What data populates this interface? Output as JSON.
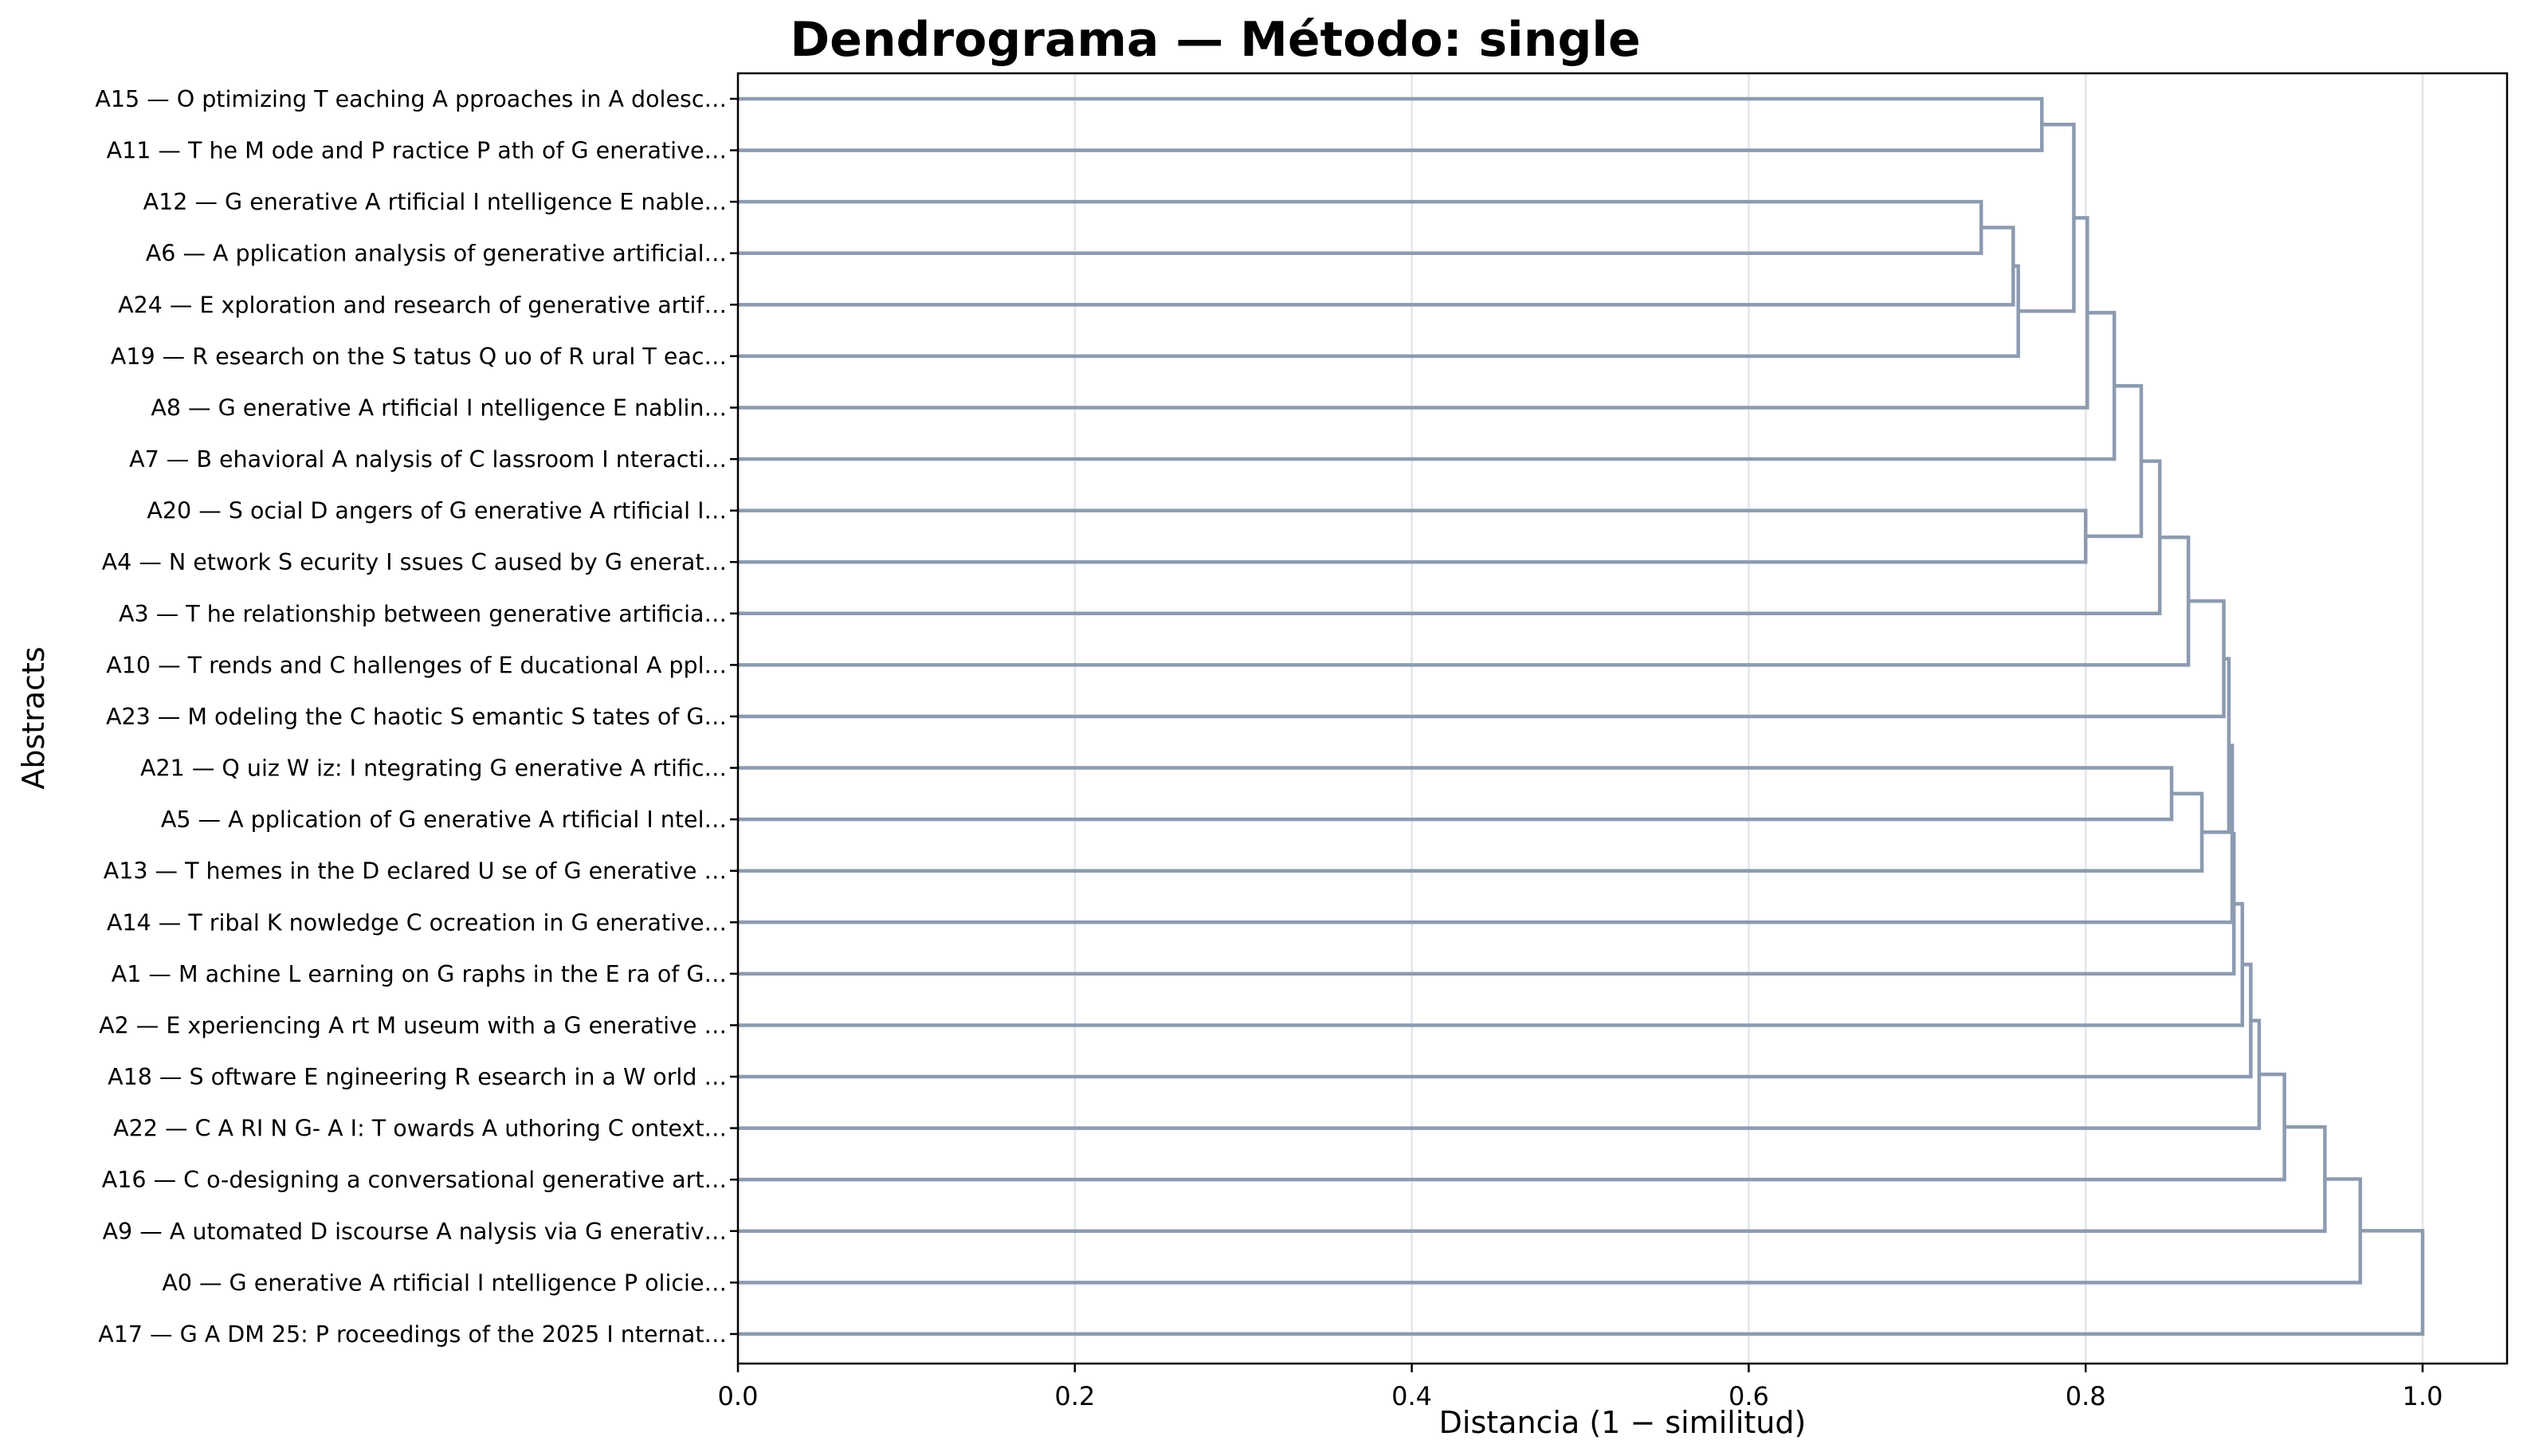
{
  "chart_data": {
    "type": "dendrogram",
    "title": "Dendrograma — Método: single",
    "xlabel": "Distancia (1 − similitud)",
    "ylabel": "Abstracts",
    "xlim": [
      0.0,
      1.05
    ],
    "xticks": [
      "0.0",
      "0.2",
      "0.4",
      "0.6",
      "0.8",
      "1.0"
    ],
    "grid": "vertical",
    "link_color": "#8d9bb0",
    "leaves": [
      "A15 — O ptimizing T eaching A pproaches in A dolesc…",
      "A11 — T he M ode and P ractice P ath of G enerative…",
      "A12 — G enerative A rtificial I ntelligence E nable…",
      "A6 — A pplication analysis of generative artificial…",
      "A24 — E xploration and research of generative artif…",
      "A19 — R esearch on the S tatus Q uo of R ural T eac…",
      "A8 — G enerative A rtificial I ntelligence E nablin…",
      "A7 — B ehavioral A nalysis of C lassroom I nteracti…",
      "A20 — S ocial D angers of G enerative A rtificial I…",
      "A4 — N etwork S ecurity I ssues C aused by G enerat…",
      "A3 — T he relationship between generative artificia…",
      "A10 — T rends and C hallenges of E ducational A ppl…",
      "A23 — M odeling the C haotic S emantic S tates of G…",
      "A21 — Q uiz W iz: I ntegrating G enerative A rtific…",
      "A5 — A pplication of G enerative A rtificial I ntel…",
      "A13 — T hemes in the D eclared U se of G enerative …",
      "A14 — T ribal K nowledge C ocreation in G enerative…",
      "A1 — M achine L earning on G raphs in the E ra of G…",
      "A2 — E xperiencing A rt M useum with a G enerative …",
      "A18 — S oftware E ngineering R esearch in a W orld …",
      "A22 — C A RI N G- A I: T owards A uthoring C ontext…",
      "A16 — C o-designing a conversational generative art…",
      "A9 — A utomated D iscourse A nalysis via G enerativ…",
      "A0 — G enerative A rtificial I ntelligence P olicie…",
      "A17 — G A DM 25: P roceedings of the 2025 I nternat…"
    ],
    "merges": [
      {
        "left": "L2",
        "right": "L3",
        "distance": 0.738
      },
      {
        "left": "N0",
        "right": "L4",
        "distance": 0.757
      },
      {
        "left": "N1",
        "right": "L5",
        "distance": 0.76
      },
      {
        "left": "L0",
        "right": "L1",
        "distance": 0.774
      },
      {
        "left": "N3",
        "right": "N2",
        "distance": 0.793
      },
      {
        "left": "N4",
        "right": "L6",
        "distance": 0.801
      },
      {
        "left": "L8",
        "right": "L9",
        "distance": 0.8
      },
      {
        "left": "N5",
        "right": "L7",
        "distance": 0.817
      },
      {
        "left": "N7",
        "right": "N6",
        "distance": 0.833
      },
      {
        "left": "N8",
        "right": "L10",
        "distance": 0.844
      },
      {
        "left": "L13",
        "right": "L14",
        "distance": 0.851
      },
      {
        "left": "N9",
        "right": "L11",
        "distance": 0.861
      },
      {
        "left": "N10",
        "right": "L15",
        "distance": 0.869
      },
      {
        "left": "N11",
        "right": "L12",
        "distance": 0.882
      },
      {
        "left": "N13",
        "right": "N12",
        "distance": 0.885
      },
      {
        "left": "N14",
        "right": "L16",
        "distance": 0.887
      },
      {
        "left": "N15",
        "right": "L17",
        "distance": 0.888
      },
      {
        "left": "N16",
        "right": "L18",
        "distance": 0.893
      },
      {
        "left": "N17",
        "right": "L19",
        "distance": 0.898
      },
      {
        "left": "N18",
        "right": "L20",
        "distance": 0.903
      },
      {
        "left": "N19",
        "right": "L21",
        "distance": 0.918
      },
      {
        "left": "N20",
        "right": "L22",
        "distance": 0.942
      },
      {
        "left": "N21",
        "right": "L23",
        "distance": 0.963
      },
      {
        "left": "N22",
        "right": "L24",
        "distance": 1.0
      }
    ]
  }
}
